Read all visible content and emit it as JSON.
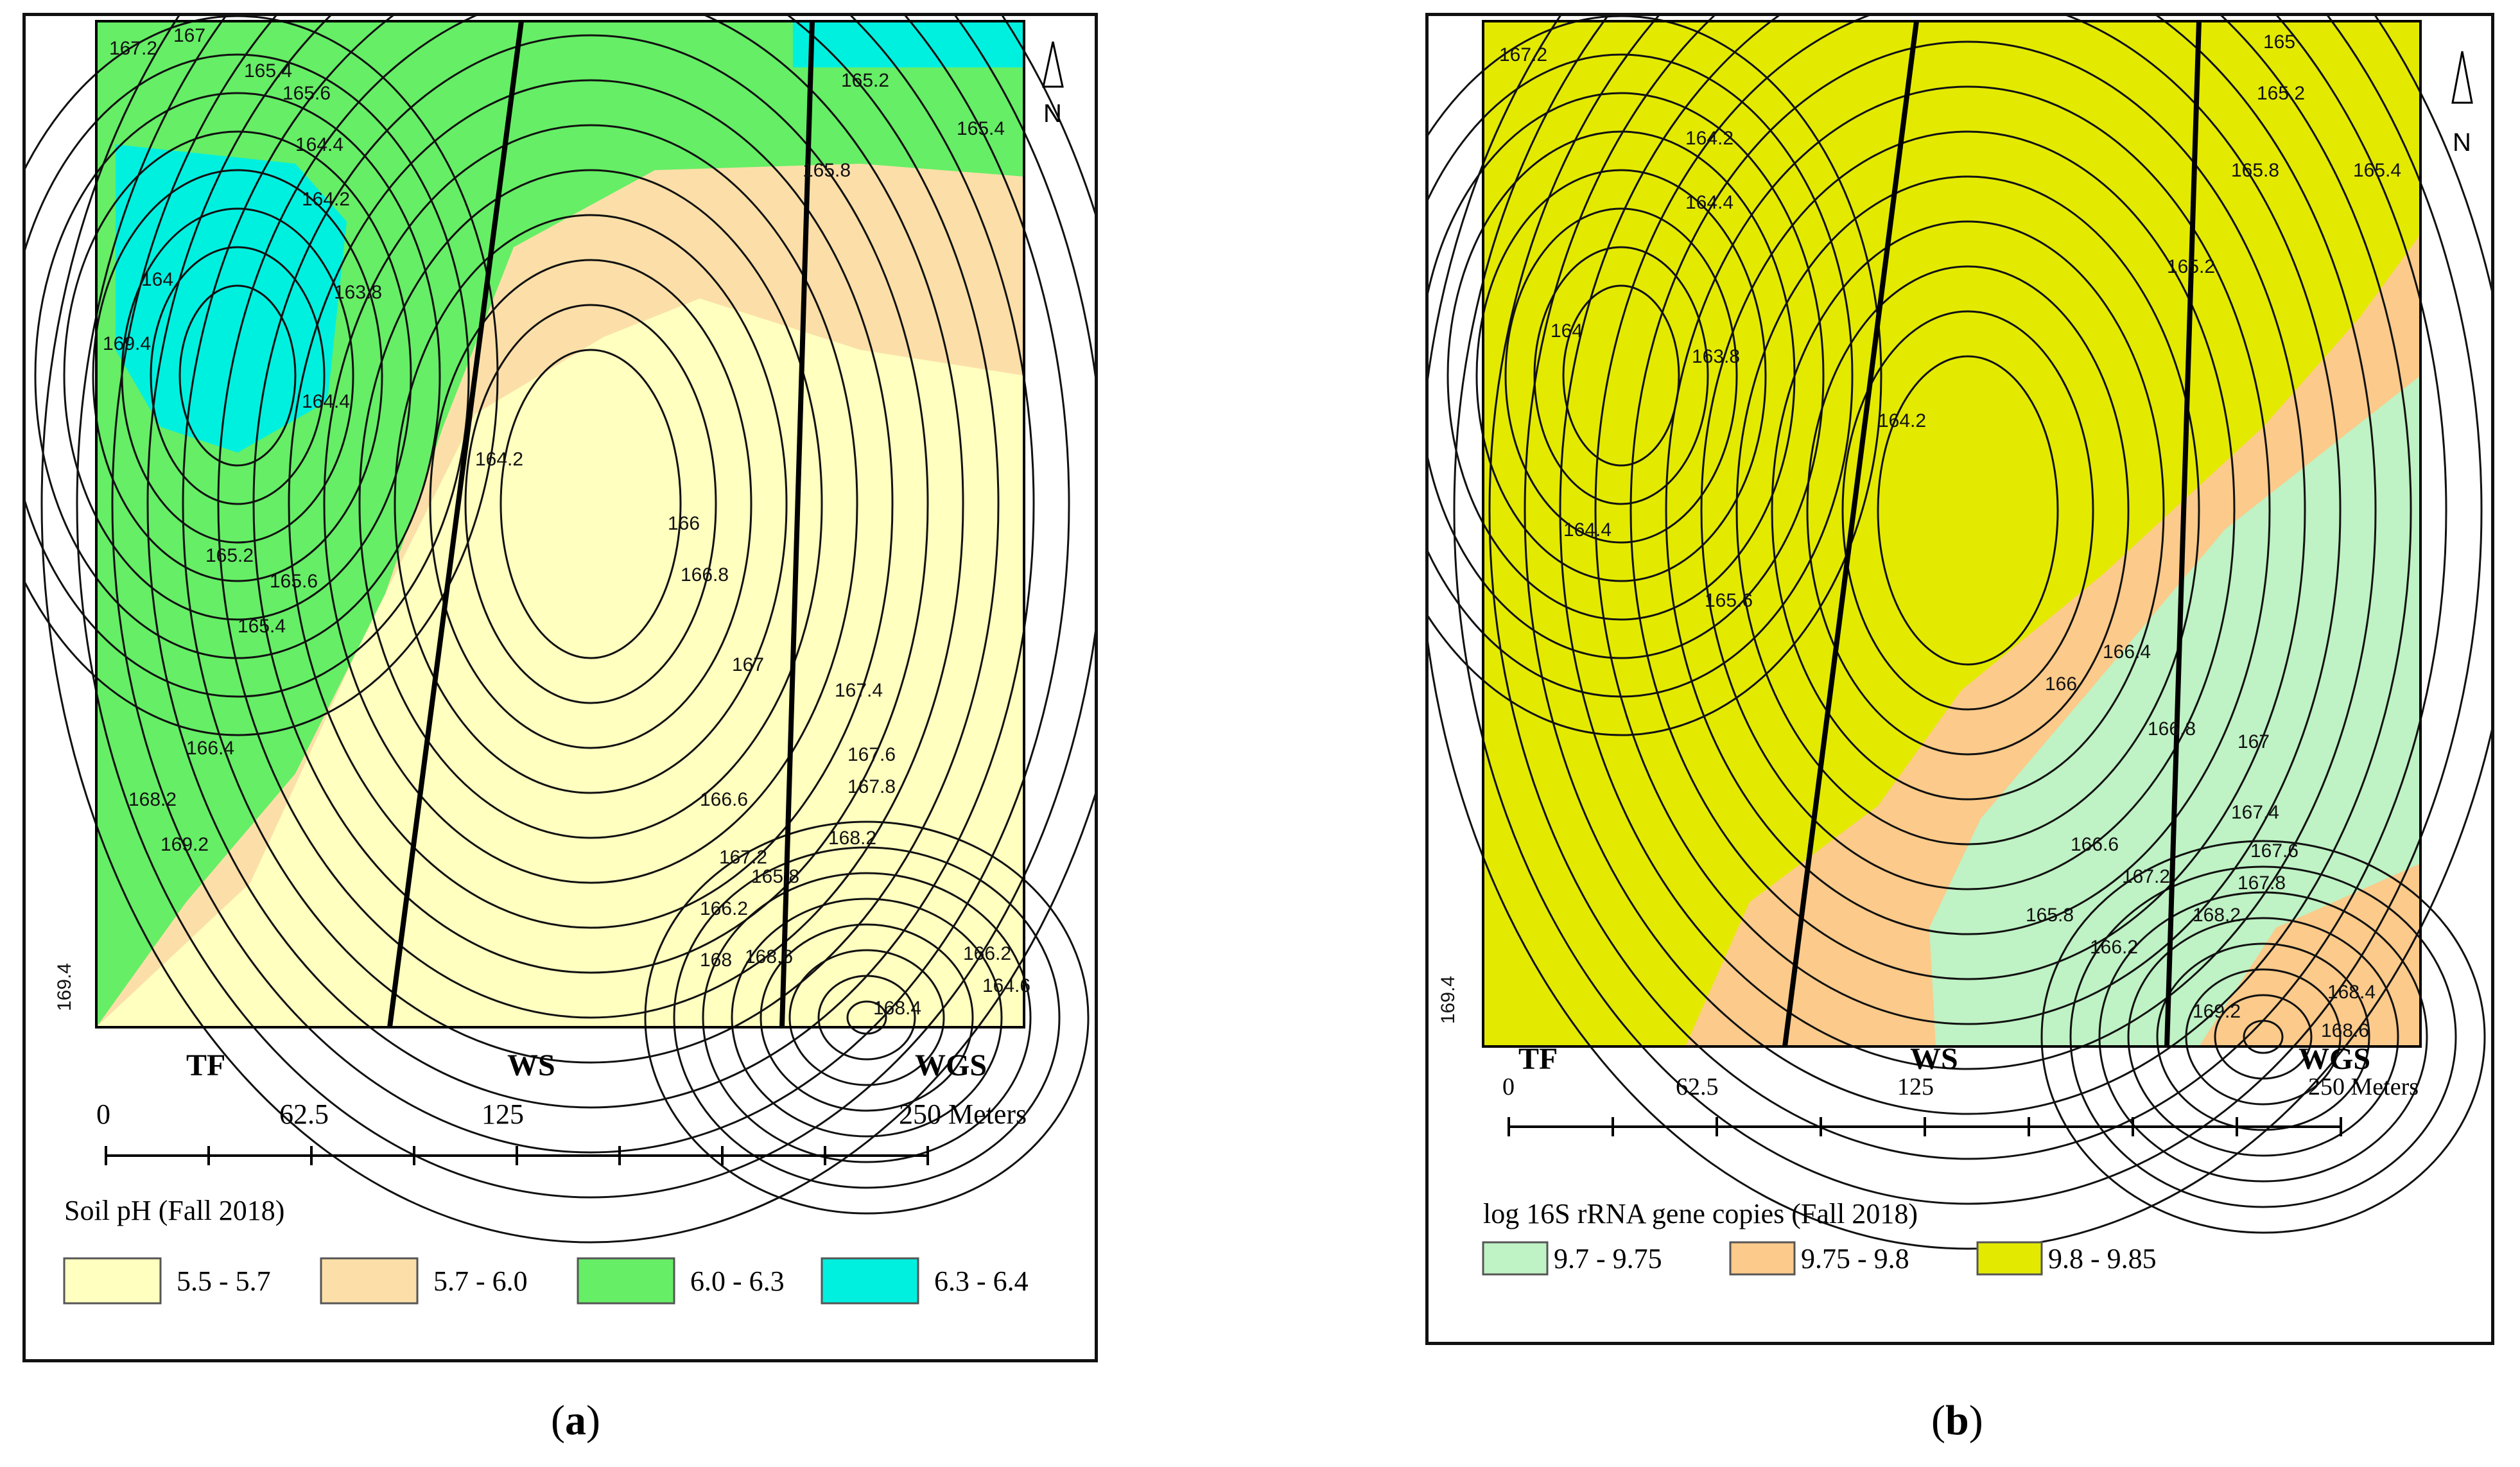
{
  "panels": [
    {
      "id": "a",
      "caption": "a",
      "north_label": "N",
      "site_labels": [
        "TF",
        "WS",
        "WGS"
      ],
      "scale": {
        "ticks": [
          "0",
          "62.5",
          "125",
          "250 Meters"
        ]
      },
      "legend": {
        "title": "Soil pH (Fall 2018)",
        "classes": [
          {
            "label": "5.5 - 5.7",
            "color": "#ffffc0"
          },
          {
            "label": "5.7 - 6.0",
            "color": "#fcdfa8"
          },
          {
            "label": "6.0 - 6.3",
            "color": "#66ee66"
          },
          {
            "label": "6.3 - 6.4",
            "color": "#00f0e0"
          }
        ]
      },
      "contour_labels": [
        "167.2",
        "167",
        "165.4",
        "165.6",
        "169.4",
        "165.2",
        "165.8",
        "165.4",
        "164.4",
        "164.2",
        "164",
        "163.8",
        "164.2",
        "164.4",
        "165.2",
        "165.6",
        "165.4",
        "166",
        "166.8",
        "167",
        "167.4",
        "167.6",
        "167.8",
        "168.2",
        "166.6",
        "167.2",
        "166.2",
        "168",
        "168.6",
        "168.4",
        "166.2",
        "164.6",
        "165.8",
        "166.4",
        "168.2",
        "169.2"
      ]
    },
    {
      "id": "b",
      "caption": "b",
      "north_label": "N",
      "site_labels": [
        "TF",
        "WS",
        "WGS"
      ],
      "scale": {
        "ticks": [
          "0",
          "62.5",
          "125",
          "250 Meters"
        ]
      },
      "legend": {
        "title": "log 16S rRNA gene copies (Fall 2018)",
        "classes": [
          {
            "label": "9.7 - 9.75",
            "color": "#bff2c4"
          },
          {
            "label": "9.75 - 9.8",
            "color": "#fcca8a"
          },
          {
            "label": "9.8 - 9.85",
            "color": "#e3ea00"
          }
        ]
      },
      "contour_labels": [
        "167.2",
        "165",
        "165.2",
        "165.4",
        "169.4",
        "165.8",
        "165.2",
        "164.4",
        "164.2",
        "164",
        "163.8",
        "164.2",
        "164.4",
        "165.6",
        "166",
        "166.4",
        "166.8",
        "167",
        "167.4",
        "167.6",
        "167.8",
        "168.2",
        "166.6",
        "167.2",
        "168.4",
        "168.6",
        "166.2",
        "165.8",
        "169.2"
      ]
    }
  ]
}
